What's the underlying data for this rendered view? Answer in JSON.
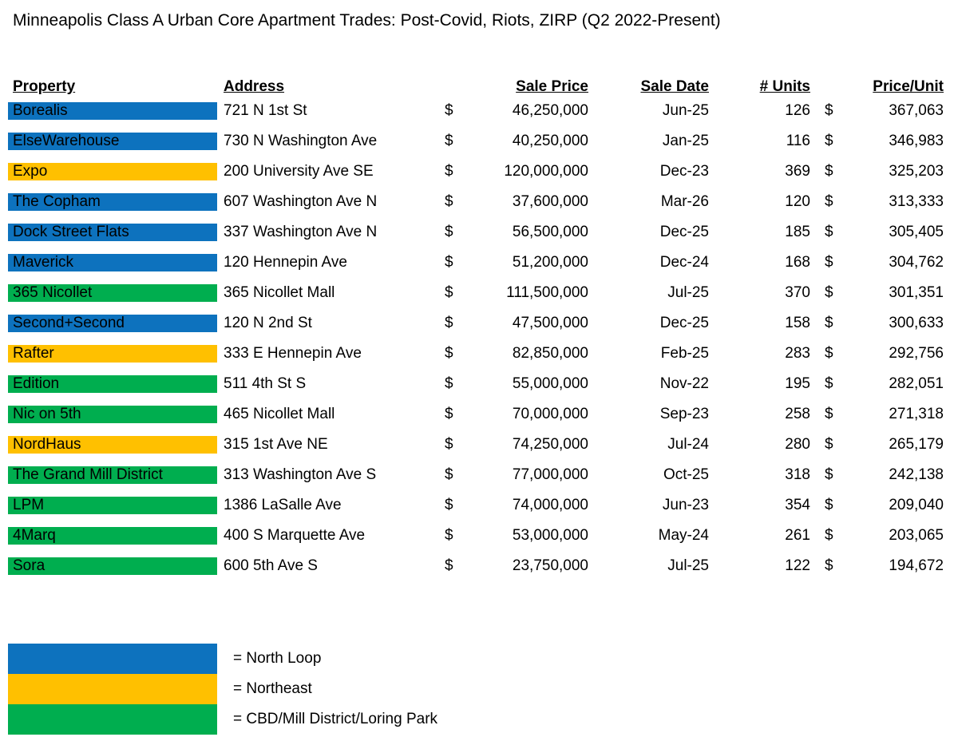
{
  "title": "Minneapolis Class A Urban Core Apartment Trades: Post-Covid, Riots, ZIRP (Q2 2022-Present)",
  "table": {
    "columns": [
      "Property",
      "Address",
      "Sale Price",
      "Sale Date",
      "# Units",
      "Price/Unit"
    ],
    "currency_symbol": "$",
    "rows": [
      {
        "property": "Borealis",
        "zone": "north_loop",
        "address": "721 N 1st St",
        "sale_price": "46,250,000",
        "sale_date": "Jun-25",
        "units": "126",
        "price_per_unit": "367,063"
      },
      {
        "property": "ElseWarehouse",
        "zone": "north_loop",
        "address": "730 N Washington Ave",
        "sale_price": "40,250,000",
        "sale_date": "Jan-25",
        "units": "116",
        "price_per_unit": "346,983"
      },
      {
        "property": "Expo",
        "zone": "northeast",
        "address": "200 University Ave SE",
        "sale_price": "120,000,000",
        "sale_date": "Dec-23",
        "units": "369",
        "price_per_unit": "325,203"
      },
      {
        "property": "The Copham",
        "zone": "north_loop",
        "address": "607 Washington Ave N",
        "sale_price": "37,600,000",
        "sale_date": "Mar-26",
        "units": "120",
        "price_per_unit": "313,333"
      },
      {
        "property": "Dock Street Flats",
        "zone": "north_loop",
        "address": "337 Washington Ave N",
        "sale_price": "56,500,000",
        "sale_date": "Dec-25",
        "units": "185",
        "price_per_unit": "305,405"
      },
      {
        "property": "Maverick",
        "zone": "north_loop",
        "address": "120 Hennepin Ave",
        "sale_price": "51,200,000",
        "sale_date": "Dec-24",
        "units": "168",
        "price_per_unit": "304,762"
      },
      {
        "property": "365 Nicollet",
        "zone": "cbd",
        "address": "365 Nicollet Mall",
        "sale_price": "111,500,000",
        "sale_date": "Jul-25",
        "units": "370",
        "price_per_unit": "301,351"
      },
      {
        "property": "Second+Second",
        "zone": "north_loop",
        "address": "120 N 2nd St",
        "sale_price": "47,500,000",
        "sale_date": "Dec-25",
        "units": "158",
        "price_per_unit": "300,633"
      },
      {
        "property": "Rafter",
        "zone": "northeast",
        "address": "333 E Hennepin Ave",
        "sale_price": "82,850,000",
        "sale_date": "Feb-25",
        "units": "283",
        "price_per_unit": "292,756"
      },
      {
        "property": "Edition",
        "zone": "cbd",
        "address": "511 4th St S",
        "sale_price": "55,000,000",
        "sale_date": "Nov-22",
        "units": "195",
        "price_per_unit": "282,051"
      },
      {
        "property": "Nic on 5th",
        "zone": "cbd",
        "address": "465 Nicollet Mall",
        "sale_price": "70,000,000",
        "sale_date": "Sep-23",
        "units": "258",
        "price_per_unit": "271,318"
      },
      {
        "property": "NordHaus",
        "zone": "northeast",
        "address": "315 1st Ave NE",
        "sale_price": "74,250,000",
        "sale_date": "Jul-24",
        "units": "280",
        "price_per_unit": "265,179"
      },
      {
        "property": "The Grand Mill District",
        "zone": "cbd",
        "address": "313 Washington Ave S",
        "sale_price": "77,000,000",
        "sale_date": "Oct-25",
        "units": "318",
        "price_per_unit": "242,138"
      },
      {
        "property": "LPM",
        "zone": "cbd",
        "address": "1386 LaSalle Ave",
        "sale_price": "74,000,000",
        "sale_date": "Jun-23",
        "units": "354",
        "price_per_unit": "209,040"
      },
      {
        "property": "4Marq",
        "zone": "cbd",
        "address": "400 S Marquette Ave",
        "sale_price": "53,000,000",
        "sale_date": "May-24",
        "units": "261",
        "price_per_unit": "203,065"
      },
      {
        "property": "Sora",
        "zone": "cbd",
        "address": "600 5th Ave S",
        "sale_price": "23,750,000",
        "sale_date": "Jul-25",
        "units": "122",
        "price_per_unit": "194,672"
      }
    ]
  },
  "colors": {
    "north_loop": "#0D72BE",
    "northeast": "#FFC000",
    "cbd": "#00AE4F"
  },
  "legend": [
    {
      "zone": "north_loop",
      "label": "= North Loop"
    },
    {
      "zone": "northeast",
      "label": "= Northeast"
    },
    {
      "zone": "cbd",
      "label": "= CBD/Mill District/Loring Park"
    }
  ]
}
